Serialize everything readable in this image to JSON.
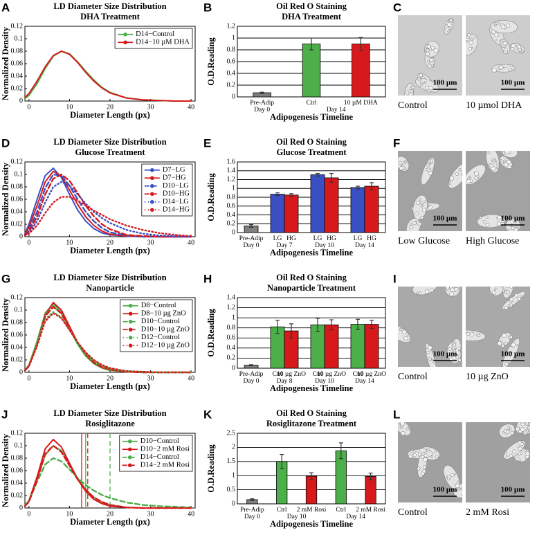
{
  "chart_data": [
    {
      "type": "line",
      "panel": "A",
      "title": "LD Diameter Size Distribution",
      "subtitle": "DHA Treatment",
      "x_label": "Diameter Length (px)",
      "y_label": "Normalized Density",
      "xlim": [
        -1,
        41
      ],
      "xticks": [
        0,
        10,
        20,
        30,
        40
      ],
      "ylim": [
        0,
        0.12
      ],
      "yticks": [
        0,
        0.02,
        0.04,
        0.06,
        0.08,
        0.1,
        0.12
      ],
      "legend": "upper right",
      "x": [
        -1,
        0,
        2,
        4,
        6,
        8,
        10,
        12,
        14,
        16,
        18,
        20,
        24,
        28,
        32,
        36,
        40
      ],
      "series": [
        {
          "name": "D14−Control",
          "color": "#4daf4a",
          "style": "solid",
          "values": [
            0.004,
            0.009,
            0.028,
            0.052,
            0.072,
            0.08,
            0.076,
            0.063,
            0.048,
            0.034,
            0.022,
            0.014,
            0.005,
            0.002,
            0.001,
            0,
            0
          ]
        },
        {
          "name": "D14−10 µM DHA",
          "color": "#d7191c",
          "style": "solid",
          "values": [
            0.006,
            0.012,
            0.032,
            0.055,
            0.073,
            0.08,
            0.075,
            0.062,
            0.046,
            0.032,
            0.021,
            0.013,
            0.005,
            0.002,
            0.001,
            0,
            0
          ]
        }
      ]
    },
    {
      "type": "bar",
      "panel": "B",
      "title": "Oil Red O Staining",
      "subtitle": "DHA Treatment",
      "x_label": "Adipogenesis Timeline",
      "y_label": "O.D.Reading",
      "grouped": false,
      "ylim": [
        0,
        1.2
      ],
      "yticks": [
        0,
        0.2,
        0.4,
        0.6,
        0.8,
        1,
        1.2
      ],
      "grid": true,
      "categories": [
        "Pre-Adip",
        "Ctrl",
        "10 µM DHA"
      ],
      "groups": [
        {
          "name": "Day 0",
          "size": 1
        },
        {
          "name": "Day 14",
          "size": 2
        }
      ],
      "values": [
        0.07,
        0.9,
        0.9
      ],
      "errors": [
        0.01,
        0.1,
        0.11
      ],
      "colors": [
        "#7f7f7f",
        "#4daf4a",
        "#d7191c"
      ]
    },
    {
      "type": "line",
      "panel": "D",
      "title": "LD Diameter Size Distribution",
      "subtitle": "Glucose Treatment",
      "x_label": "Diameter Length (px)",
      "y_label": "Normalized Density",
      "xlim": [
        -1,
        41
      ],
      "xticks": [
        0,
        10,
        20,
        30,
        40
      ],
      "ylim": [
        0,
        0.12
      ],
      "yticks": [
        0,
        0.02,
        0.04,
        0.06,
        0.08,
        0.1,
        0.12
      ],
      "legend": "upper right",
      "x": [
        -1,
        0,
        2,
        4,
        6,
        8,
        10,
        12,
        14,
        16,
        18,
        20,
        24,
        28,
        32,
        36,
        40
      ],
      "series": [
        {
          "name": "D7−LG",
          "color": "#3a4fc4",
          "style": "solid",
          "values": [
            0.005,
            0.02,
            0.06,
            0.098,
            0.11,
            0.095,
            0.068,
            0.043,
            0.025,
            0.013,
            0.006,
            0.003,
            0.001,
            0,
            0,
            0,
            0
          ]
        },
        {
          "name": "D7−HG",
          "color": "#d7191c",
          "style": "solid",
          "values": [
            0.004,
            0.015,
            0.05,
            0.088,
            0.105,
            0.097,
            0.075,
            0.052,
            0.032,
            0.018,
            0.009,
            0.004,
            0.001,
            0,
            0,
            0,
            0
          ]
        },
        {
          "name": "D10−LG",
          "color": "#3a4fc4",
          "style": "dashed",
          "values": [
            0.003,
            0.01,
            0.04,
            0.078,
            0.1,
            0.098,
            0.082,
            0.06,
            0.04,
            0.025,
            0.014,
            0.007,
            0.002,
            0,
            0,
            0,
            0
          ]
        },
        {
          "name": "D10−HG",
          "color": "#d7191c",
          "style": "dashed",
          "values": [
            0.002,
            0.008,
            0.032,
            0.068,
            0.093,
            0.1,
            0.09,
            0.07,
            0.05,
            0.033,
            0.02,
            0.012,
            0.003,
            0.001,
            0,
            0,
            0
          ]
        },
        {
          "name": "D14−LG",
          "color": "#3a4fc4",
          "style": "dotted",
          "values": [
            0.002,
            0.006,
            0.025,
            0.055,
            0.08,
            0.088,
            0.082,
            0.068,
            0.053,
            0.04,
            0.03,
            0.022,
            0.011,
            0.005,
            0.002,
            0.001,
            0
          ]
        },
        {
          "name": "D14−HG",
          "color": "#d7191c",
          "style": "dotted",
          "values": [
            0.002,
            0.005,
            0.018,
            0.038,
            0.055,
            0.064,
            0.064,
            0.058,
            0.05,
            0.042,
            0.035,
            0.028,
            0.018,
            0.011,
            0.006,
            0.003,
            0.001
          ]
        }
      ]
    },
    {
      "type": "bar",
      "panel": "E",
      "title": "Oil Red O Staining",
      "subtitle": "Glucose Treatment",
      "x_label": "Adipogenesis Timeline",
      "y_label": "O.D.Reading",
      "grouped": true,
      "ylim": [
        0,
        1.6
      ],
      "yticks": [
        0,
        0.2,
        0.4,
        0.6,
        0.8,
        1,
        1.2,
        1.4,
        1.6
      ],
      "grid": true,
      "categories": [
        "Pre-Adip",
        "LG",
        "HG",
        "LG",
        "HG",
        "LG",
        "HG"
      ],
      "groups": [
        {
          "name": "Day 0",
          "size": 1
        },
        {
          "name": "Day 7",
          "size": 2
        },
        {
          "name": "Day 10",
          "size": 2
        },
        {
          "name": "Day 14",
          "size": 2
        }
      ],
      "values": [
        0.15,
        0.87,
        0.85,
        1.31,
        1.24,
        1.02,
        1.05
      ],
      "errors": [
        0.03,
        0.03,
        0.03,
        0.03,
        0.1,
        0.03,
        0.08
      ],
      "colors": [
        "#7f7f7f",
        "#3a4fc4",
        "#d7191c",
        "#3a4fc4",
        "#d7191c",
        "#3a4fc4",
        "#d7191c"
      ]
    },
    {
      "type": "line",
      "panel": "G",
      "title": "LD Diameter Size Distribution",
      "subtitle": "Nanoparticle",
      "x_label": "Diameter Length (px)",
      "y_label": "Normalized Density",
      "xlim": [
        -1,
        41
      ],
      "xticks": [
        0,
        10,
        20,
        30,
        40
      ],
      "ylim": [
        0,
        0.12
      ],
      "yticks": [
        0,
        0.02,
        0.04,
        0.06,
        0.08,
        0.1,
        0.12
      ],
      "legend": "upper right",
      "x": [
        -1,
        0,
        2,
        4,
        6,
        8,
        10,
        12,
        14,
        16,
        18,
        20,
        24,
        28,
        32,
        36,
        40
      ],
      "series": [
        {
          "name": "D8−Control",
          "color": "#4daf4a",
          "style": "solid",
          "values": [
            0.003,
            0.012,
            0.05,
            0.095,
            0.11,
            0.096,
            0.07,
            0.045,
            0.026,
            0.014,
            0.007,
            0.003,
            0.001,
            0,
            0,
            0,
            0
          ]
        },
        {
          "name": "D8−10 µg ZnO",
          "color": "#d7191c",
          "style": "solid",
          "values": [
            0.003,
            0.01,
            0.046,
            0.093,
            0.112,
            0.1,
            0.074,
            0.048,
            0.028,
            0.015,
            0.008,
            0.004,
            0.001,
            0,
            0,
            0,
            0
          ]
        },
        {
          "name": "D10−Control",
          "color": "#4daf4a",
          "style": "dashed",
          "values": [
            0.003,
            0.011,
            0.048,
            0.092,
            0.106,
            0.094,
            0.07,
            0.046,
            0.028,
            0.016,
            0.009,
            0.005,
            0.001,
            0,
            0,
            0,
            0
          ]
        },
        {
          "name": "D10−10 µg ZnO",
          "color": "#d7191c",
          "style": "dashed",
          "values": [
            0.003,
            0.01,
            0.045,
            0.09,
            0.105,
            0.095,
            0.072,
            0.048,
            0.029,
            0.016,
            0.009,
            0.005,
            0.001,
            0,
            0,
            0,
            0
          ]
        },
        {
          "name": "D12−Control",
          "color": "#4daf4a",
          "style": "dotted",
          "values": [
            0.003,
            0.011,
            0.045,
            0.085,
            0.097,
            0.088,
            0.068,
            0.048,
            0.031,
            0.019,
            0.011,
            0.006,
            0.002,
            0.001,
            0,
            0,
            0
          ]
        },
        {
          "name": "D12−10 µg ZnO",
          "color": "#d7191c",
          "style": "dotted",
          "values": [
            0.003,
            0.01,
            0.042,
            0.082,
            0.095,
            0.087,
            0.068,
            0.048,
            0.032,
            0.02,
            0.012,
            0.007,
            0.002,
            0.001,
            0,
            0,
            0
          ]
        }
      ]
    },
    {
      "type": "bar",
      "panel": "H",
      "title": "Oil Red O Staining",
      "subtitle": "Nanoparticle Treatment",
      "x_label": "Adipogenesis Timeline",
      "y_label": "O.D.Reading",
      "grouped": true,
      "ylim": [
        0,
        1.4
      ],
      "yticks": [
        0,
        0.2,
        0.4,
        0.6,
        0.8,
        1,
        1.2,
        1.4
      ],
      "grid": true,
      "categories": [
        "Pre-Adip",
        "Ctrl",
        "10 µg ZnO",
        "Ctrl",
        "10 µg ZnO",
        "Ctrl",
        "10 µg ZnO"
      ],
      "groups": [
        {
          "name": "Day 0",
          "size": 1
        },
        {
          "name": "Day 8",
          "size": 2
        },
        {
          "name": "Day 10",
          "size": 2
        },
        {
          "name": "Day 14",
          "size": 2
        }
      ],
      "values": [
        0.06,
        0.82,
        0.74,
        0.86,
        0.86,
        0.87,
        0.87
      ],
      "errors": [
        0.01,
        0.13,
        0.14,
        0.13,
        0.1,
        0.1,
        0.08
      ],
      "colors": [
        "#7f7f7f",
        "#4daf4a",
        "#d7191c",
        "#4daf4a",
        "#d7191c",
        "#4daf4a",
        "#d7191c"
      ]
    },
    {
      "type": "line",
      "panel": "J",
      "title": "LD Diameter Size Distribution",
      "subtitle": "Rosiglitazone",
      "x_label": "Diameter Length (px)",
      "y_label": "Normalized Density",
      "xlim": [
        -1,
        41
      ],
      "xticks": [
        0,
        10,
        20,
        30,
        40
      ],
      "ylim": [
        0,
        0.12
      ],
      "yticks": [
        0,
        0.02,
        0.04,
        0.06,
        0.08,
        0.1,
        0.12
      ],
      "legend": "upper right",
      "x": [
        -1,
        0,
        2,
        4,
        6,
        8,
        10,
        12,
        14,
        16,
        18,
        20,
        24,
        28,
        32,
        36,
        40
      ],
      "series": [
        {
          "name": "D10−Control",
          "color": "#4daf4a",
          "style": "solid",
          "values": [
            0.003,
            0.01,
            0.045,
            0.085,
            0.1,
            0.092,
            0.07,
            0.048,
            0.03,
            0.017,
            0.009,
            0.005,
            0.001,
            0,
            0,
            0,
            0
          ]
        },
        {
          "name": "D10−2 mM Rosi",
          "color": "#d7191c",
          "style": "solid",
          "values": [
            0.003,
            0.012,
            0.05,
            0.095,
            0.11,
            0.098,
            0.072,
            0.046,
            0.027,
            0.014,
            0.007,
            0.003,
            0.001,
            0,
            0,
            0,
            0
          ]
        },
        {
          "name": "D14−Control",
          "color": "#4daf4a",
          "style": "dashed",
          "values": [
            0.004,
            0.012,
            0.042,
            0.07,
            0.08,
            0.075,
            0.062,
            0.048,
            0.037,
            0.028,
            0.021,
            0.016,
            0.009,
            0.005,
            0.003,
            0.002,
            0.001
          ]
        },
        {
          "name": "D14−2 mM Rosi",
          "color": "#d7191c",
          "style": "dashed",
          "values": [
            0.003,
            0.01,
            0.045,
            0.087,
            0.1,
            0.09,
            0.068,
            0.046,
            0.029,
            0.017,
            0.01,
            0.005,
            0.001,
            0,
            0,
            0,
            0
          ]
        }
      ],
      "vlines": [
        {
          "x": 13,
          "color": "#d7191c",
          "style": "solid"
        },
        {
          "x": 14,
          "color": "#4daf4a",
          "style": "solid"
        },
        {
          "x": 14.5,
          "color": "#d7191c",
          "style": "dashed"
        },
        {
          "x": 20,
          "color": "#4daf4a",
          "style": "dashed"
        }
      ]
    },
    {
      "type": "bar",
      "panel": "K",
      "title": "Oil Red O Staining",
      "subtitle": "Rosiglitazone Treatment",
      "x_label": "Adipogenesis Timeline",
      "y_label": "O.D.Reading",
      "grouped": false,
      "ylim": [
        0,
        2.5
      ],
      "yticks": [
        0,
        0.5,
        1,
        1.5,
        2,
        2.5
      ],
      "grid": true,
      "categories": [
        "Pre-Adip",
        "Ctrl",
        "2 mM Rosi",
        "Ctrl",
        "2 mM Rosi"
      ],
      "groups": [
        {
          "name": "Day 0",
          "size": 1
        },
        {
          "name": "Day 10",
          "size": 2
        },
        {
          "name": "Day 14",
          "size": 2
        }
      ],
      "values": [
        0.15,
        1.5,
        0.98,
        1.88,
        0.97
      ],
      "errors": [
        0.03,
        0.25,
        0.12,
        0.28,
        0.12
      ],
      "colors": [
        "#7f7f7f",
        "#4daf4a",
        "#d7191c",
        "#4daf4a",
        "#d7191c"
      ]
    }
  ],
  "micrographs": [
    {
      "panel": "C",
      "images": [
        {
          "caption": "Control",
          "scale_bar": "100 µm"
        },
        {
          "caption": "10 µmol DHA",
          "scale_bar": "100 µm"
        }
      ]
    },
    {
      "panel": "F",
      "images": [
        {
          "caption": "Low Glucose",
          "scale_bar": "100 µm"
        },
        {
          "caption": "High Glucose",
          "scale_bar": "100 µm"
        }
      ]
    },
    {
      "panel": "I",
      "images": [
        {
          "caption": "Control",
          "scale_bar": "100 µm"
        },
        {
          "caption": "10 µg ZnO",
          "scale_bar": "100 µm"
        }
      ]
    },
    {
      "panel": "L",
      "images": [
        {
          "caption": "Control",
          "scale_bar": "100 µm"
        },
        {
          "caption": "2 mM Rosi",
          "scale_bar": "100 µm"
        }
      ]
    }
  ]
}
